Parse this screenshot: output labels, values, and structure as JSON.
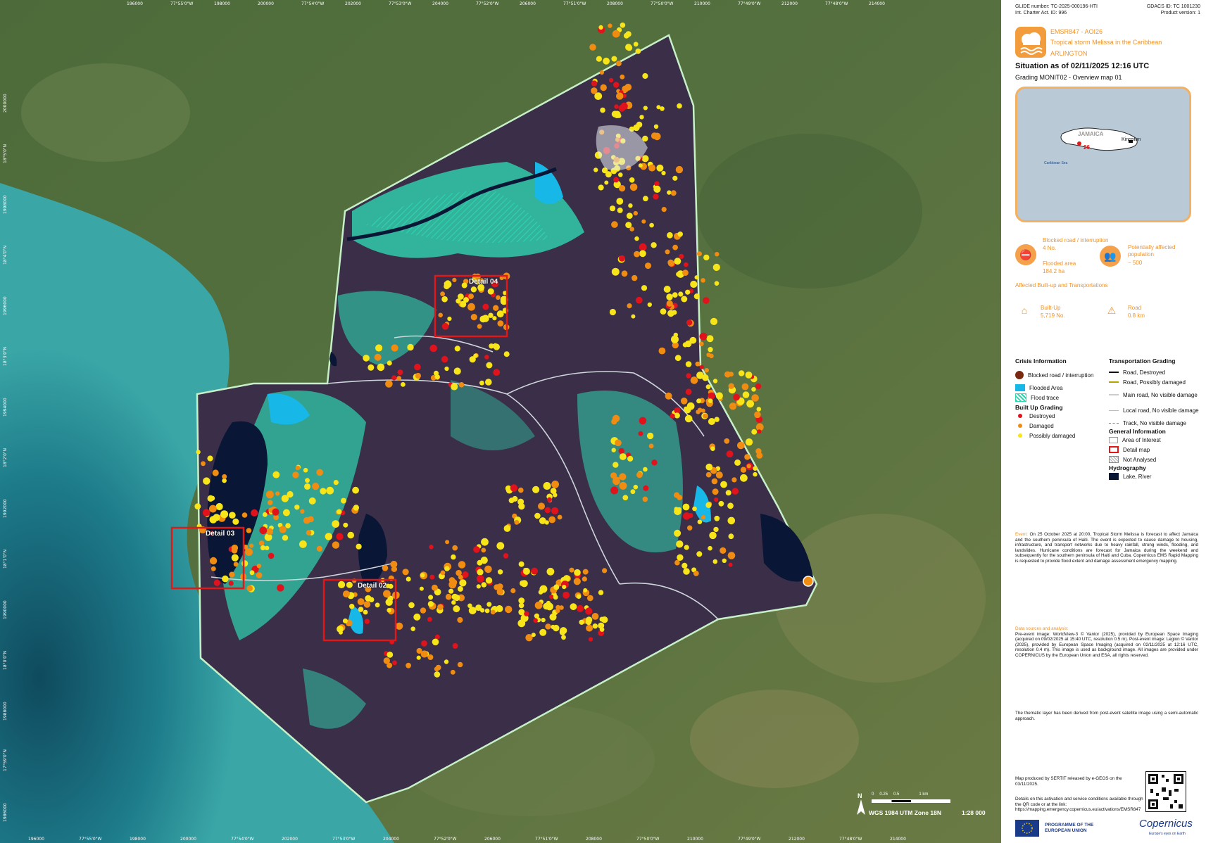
{
  "map": {
    "top_ticks": [
      "196000",
      "77°55'0\"W",
      "198000",
      "200000",
      "77°54'0\"W",
      "202000",
      "77°53'0\"W",
      "204000",
      "77°52'0\"W",
      "206000",
      "77°51'0\"W",
      "208000",
      "77°50'0\"W",
      "210000",
      "77°49'0\"W",
      "212000",
      "77°48'0\"W",
      "214000"
    ],
    "bottom_ticks": [
      "196000",
      "77°55'0\"W",
      "198000",
      "200000",
      "77°54'0\"W",
      "202000",
      "77°53'0\"W",
      "204000",
      "77°52'0\"W",
      "206000",
      "77°51'0\"W",
      "208000",
      "77°50'0\"W",
      "210000",
      "77°49'0\"W",
      "212000",
      "77°48'0\"W",
      "214000"
    ],
    "left_ticks": [
      "2000000",
      "18°5'0\"N",
      "1998000",
      "18°4'0\"N",
      "1996000",
      "18°3'0\"N",
      "1994000",
      "18°2'0\"N",
      "1992000",
      "18°1'0\"N",
      "1990000",
      "18°0'0\"N",
      "1988000",
      "17°59'0\"N",
      "1986000"
    ],
    "details": [
      {
        "label": "Detail 04"
      },
      {
        "label": "Detail 03"
      },
      {
        "label": "Detail 02"
      }
    ],
    "scale": {
      "north": "N",
      "ticks": [
        "0",
        "0.25",
        "0.5",
        "1 km"
      ],
      "projection": "WGS 1984 UTM Zone 18N",
      "ratio": "1:28 000"
    }
  },
  "panel": {
    "glide": "GLIDE number: TC-2025-000196-HTI",
    "charter": "Int. Charter Act. ID: 996",
    "gdacs": "GDACS ID: TC 1001230",
    "product_version": "Product version: 1",
    "activation": "EMSR847 - AOI26",
    "event_title": "Tropical storm Melissa in the Caribbean",
    "aoi_name": "ARLINGTON",
    "situation": "Situation as of 02/11/2025 12:16 UTC",
    "product": "Grading MONIT02 - Overview map 01",
    "inset": {
      "country": "JAMAICA",
      "city": "Kingston",
      "sea": "Caribbean Sea",
      "aoi_num": "26"
    },
    "stats": {
      "blocked_label": "Blocked road / interruption",
      "blocked_value": "4 No.",
      "flooded_label": "Flooded area",
      "flooded_value": "184.2 ha",
      "population_label": "Potentially affected population",
      "population_value": "~ 500",
      "affected_heading": "Affected Built-up and Transportations",
      "builtup_label": "Built-Up",
      "builtup_value": "5,719 No.",
      "road_label": "Road",
      "road_value": "0.8 km"
    },
    "legend": {
      "crisis_heading": "Crisis Information",
      "blocked": "Blocked road / interruption",
      "flooded": "Flooded Area",
      "flood_trace": "Flood trace",
      "builtup_heading": "Built Up Grading",
      "destroyed": "Destroyed",
      "damaged": "Damaged",
      "possibly": "Possibly damaged",
      "transport_heading": "Transportation Grading",
      "road_destroyed": "Road, Destroyed",
      "road_possibly": "Road, Possibly damaged",
      "main_road": "Main road, No visible damage",
      "local_road": "Local road, No visible damage",
      "track": "Track, No visible damage",
      "general_heading": "General Information",
      "aoi": "Area of Interest",
      "detail_map": "Detail map",
      "not_analysed": "Not Analysed",
      "hydro_heading": "Hydrography",
      "lake": "Lake, River"
    },
    "event_label": "Event:",
    "event_text": "On 25 October 2025 at 20:00, Tropical Storm Melissa is forecast to affect Jamaica and the southern peninsula of Haiti. The event is expected to cause damage to housing, infrastructure, and transport networks due to heavy rainfall, strong winds, flooding, and landslides. Hurricane conditions are forecast for Jamaica during the weekend and subsequently for the southern peninsula of Haiti and Cuba. Copernicus EMS Rapid Mapping is requested to provide flood extent and damage assessment emergency mapping.",
    "data_heading": "Data sources and analysis:",
    "data_text": "Pre-event image: WorldView-3 © Vantor (2025), provided by European Space Imaging (acquired on 09/02/2025 at 15:40 UTC, resolution 0.5 m). Post-event image: Legion © Vantor (2025), provided by European Space Imaging (acquired on 02/11/2025 at 12:16 UTC, resolution 0.4 m). This image is used as background image. All images are provided under COPERNICUS by the European Union and ESA, all rights reserved.",
    "thematic_text": "The thematic layer has been derived from post-event satellite image using a semi-automatic approach.",
    "produced_text": "Map produced by SERTIT released by e-GEOS on the 03/11/2025.",
    "details_text": "Details on this activation and service conditions available through the QR code or at the link: https://mapping.emergency.copernicus.eu/activations/EMSR847",
    "programme": "PROGRAMME OF THE EUROPEAN UNION",
    "copernicus": "Copernicus",
    "copernicus_sub": "Europe's eyes on Earth",
    "colors": {
      "accent": "#f0932b",
      "flood": "#17b7e8",
      "destroyed": "#e0121b",
      "damaged": "#f08c12",
      "possibly": "#f7e51a",
      "detail": "#e01818",
      "lake": "#0a1635",
      "aoi": "#c8f0c8"
    }
  }
}
